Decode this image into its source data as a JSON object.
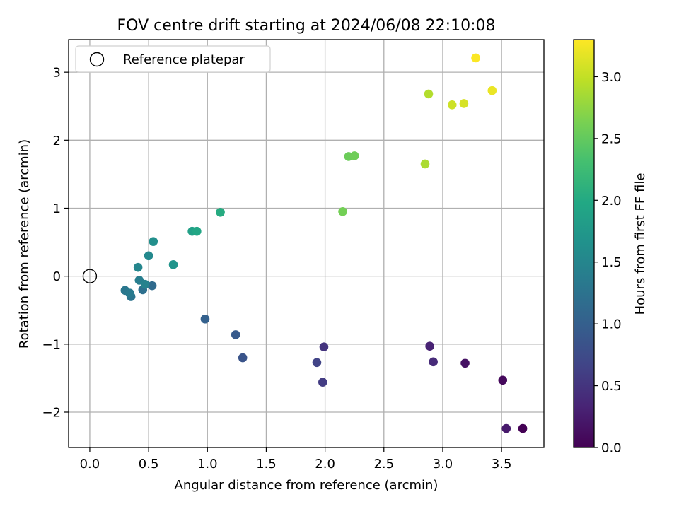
{
  "chart_data": {
    "type": "scatter",
    "title": "FOV centre drift starting at 2024/06/08 22:10:08",
    "xlabel": "Angular distance from reference (arcmin)",
    "ylabel": "Rotation from reference (arcmin)",
    "xlim": [
      -0.18,
      3.86
    ],
    "ylim": [
      -2.52,
      3.48
    ],
    "x_ticks": [
      0.0,
      0.5,
      1.0,
      1.5,
      2.0,
      2.5,
      3.0,
      3.5
    ],
    "x_tick_labels": [
      "0.0",
      "0.5",
      "1.0",
      "1.5",
      "2.0",
      "2.5",
      "3.0",
      "3.5"
    ],
    "y_ticks": [
      -2,
      -1,
      0,
      1,
      2,
      3
    ],
    "y_tick_labels": [
      "−2",
      "−1",
      "0",
      "1",
      "2",
      "3"
    ],
    "grid": true,
    "legend": {
      "placement": "upper-left",
      "entries": [
        {
          "label": "Reference platepar",
          "marker": "open-circle"
        }
      ]
    },
    "reference_point": {
      "x": 0.0,
      "y": 0.0,
      "color": "#000000"
    },
    "colorbar": {
      "label": "Hours from first FF file",
      "colormap": "viridis",
      "range": [
        0.0,
        3.3
      ],
      "ticks": [
        0.0,
        0.5,
        1.0,
        1.5,
        2.0,
        2.5,
        3.0
      ],
      "tick_labels": [
        "0.0",
        "0.5",
        "1.0",
        "1.5",
        "2.0",
        "2.5",
        "3.0"
      ]
    },
    "points": [
      {
        "x": 3.68,
        "y": -2.24,
        "hours": 0.0
      },
      {
        "x": 3.51,
        "y": -1.53,
        "hours": 0.08
      },
      {
        "x": 3.19,
        "y": -1.28,
        "hours": 0.16
      },
      {
        "x": 3.54,
        "y": -2.24,
        "hours": 0.24
      },
      {
        "x": 2.89,
        "y": -1.03,
        "hours": 0.32
      },
      {
        "x": 2.92,
        "y": -1.26,
        "hours": 0.4
      },
      {
        "x": 1.99,
        "y": -1.04,
        "hours": 0.5
      },
      {
        "x": 1.98,
        "y": -1.56,
        "hours": 0.58
      },
      {
        "x": 1.93,
        "y": -1.27,
        "hours": 0.66
      },
      {
        "x": 1.3,
        "y": -1.2,
        "hours": 0.85
      },
      {
        "x": 1.24,
        "y": -0.86,
        "hours": 0.93
      },
      {
        "x": 0.98,
        "y": -0.63,
        "hours": 1.01
      },
      {
        "x": 0.53,
        "y": -0.14,
        "hours": 1.15
      },
      {
        "x": 0.45,
        "y": -0.2,
        "hours": 1.21
      },
      {
        "x": 0.35,
        "y": -0.3,
        "hours": 1.27
      },
      {
        "x": 0.3,
        "y": -0.21,
        "hours": 1.31
      },
      {
        "x": 0.34,
        "y": -0.25,
        "hours": 1.35
      },
      {
        "x": 0.42,
        "y": -0.06,
        "hours": 1.4
      },
      {
        "x": 0.47,
        "y": -0.12,
        "hours": 1.45
      },
      {
        "x": 0.41,
        "y": 0.13,
        "hours": 1.5
      },
      {
        "x": 0.5,
        "y": 0.3,
        "hours": 1.55
      },
      {
        "x": 0.54,
        "y": 0.51,
        "hours": 1.62
      },
      {
        "x": 0.71,
        "y": 0.17,
        "hours": 1.7
      },
      {
        "x": 0.87,
        "y": 0.66,
        "hours": 1.87
      },
      {
        "x": 0.91,
        "y": 0.66,
        "hours": 1.95
      },
      {
        "x": 1.11,
        "y": 0.94,
        "hours": 2.03
      },
      {
        "x": 2.15,
        "y": 0.95,
        "hours": 2.6
      },
      {
        "x": 2.2,
        "y": 1.76,
        "hours": 2.55
      },
      {
        "x": 2.25,
        "y": 1.77,
        "hours": 2.57
      },
      {
        "x": 2.85,
        "y": 1.65,
        "hours": 2.88
      },
      {
        "x": 2.88,
        "y": 2.68,
        "hours": 2.92
      },
      {
        "x": 3.08,
        "y": 2.52,
        "hours": 3.05
      },
      {
        "x": 3.18,
        "y": 2.54,
        "hours": 3.1
      },
      {
        "x": 3.42,
        "y": 2.73,
        "hours": 3.2
      },
      {
        "x": 3.28,
        "y": 3.21,
        "hours": 3.29
      }
    ]
  }
}
